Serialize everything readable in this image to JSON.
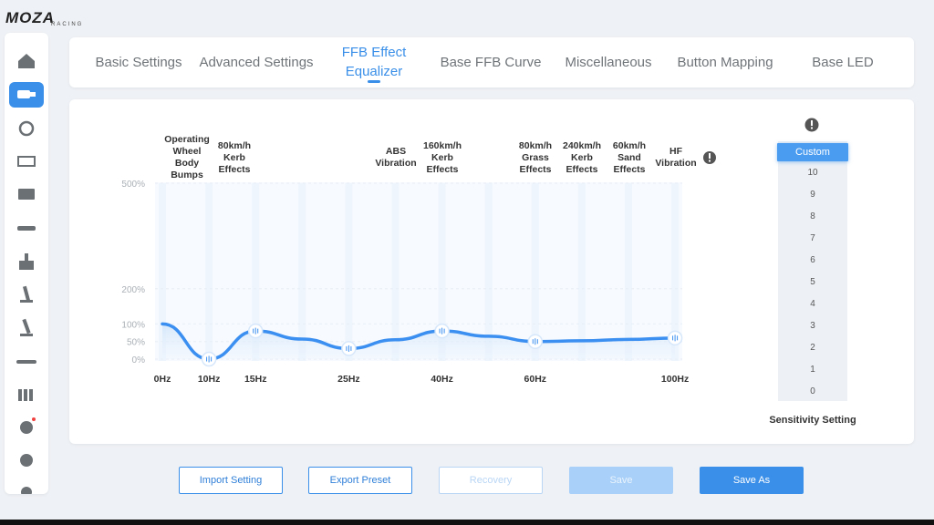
{
  "logo": {
    "brand": "MOZA",
    "sub": "RACING"
  },
  "tabs": {
    "items": [
      "Basic Settings",
      "Advanced Settings",
      "FFB Effect Equalizer",
      "Base FFB Curve",
      "Miscellaneous",
      "Button Mapping",
      "Base LED"
    ],
    "active": 2
  },
  "chart_data": {
    "type": "line",
    "categories": [
      "0Hz",
      "10Hz",
      "15Hz",
      null,
      "25Hz",
      null,
      "40Hz",
      null,
      "60Hz",
      null,
      null,
      "100Hz"
    ],
    "values": [
      100,
      0,
      80,
      57,
      30,
      55,
      80,
      65,
      50,
      52,
      56,
      60
    ],
    "color": "#3b8ff0",
    "ylim": [
      0,
      500
    ],
    "yticks": [
      {
        "value": 0,
        "label": "0%"
      },
      {
        "value": 50,
        "label": "50%"
      },
      {
        "value": 100,
        "label": "100%"
      },
      {
        "value": 200,
        "label": "200%"
      },
      {
        "value": 500,
        "label": "500%"
      }
    ],
    "grid": true,
    "annotations": [
      "Operating Wheel Body Bumps",
      "80km/h Kerb Effects",
      "ABS Vibration",
      "160km/h Kerb Effects",
      "80km/h Grass Effects",
      "240km/h Kerb Effects",
      "60km/h Sand Effects",
      "HF Vibration"
    ]
  },
  "sensitivity": {
    "selected": "Custom",
    "levels": [
      10,
      9,
      8,
      7,
      6,
      5,
      4,
      3,
      2,
      1,
      0
    ],
    "label": "Sensitivity Setting"
  },
  "buttons": [
    {
      "label": "Import Setting",
      "state": "outline"
    },
    {
      "label": "Export Preset",
      "state": "outline"
    },
    {
      "label": "Recovery",
      "state": "disabled-outline"
    },
    {
      "label": "Save",
      "state": "disabled"
    },
    {
      "label": "Save As",
      "state": "primary"
    }
  ]
}
